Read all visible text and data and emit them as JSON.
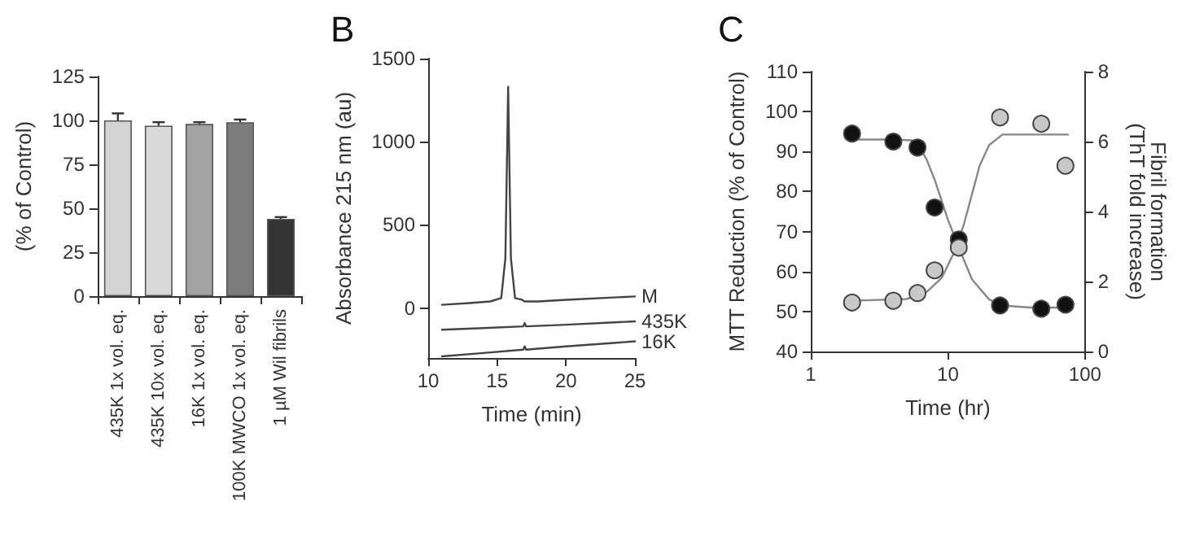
{
  "chart_data": [
    {
      "type": "bar",
      "ylabel": "(% of Control)",
      "categories": [
        "435K 1x vol. eq.",
        "435K 10x vol. eq.",
        "16K 1x vol. eq.",
        "100K MWCO 1x vol. eq.",
        "1 µM Wil fibrils"
      ],
      "values": [
        100,
        97,
        98,
        99,
        44
      ],
      "errors": [
        4,
        2,
        1,
        1.5,
        1
      ],
      "colors": [
        "#d4d4d4",
        "#d9d9d9",
        "#a3a3a3",
        "#7b7b7b",
        "#333333"
      ],
      "ylim": [
        0,
        125
      ],
      "yticks": [
        0,
        25,
        50,
        75,
        100,
        125
      ],
      "grid": false
    },
    {
      "type": "line",
      "title": "B",
      "xlabel": "Time (min)",
      "ylabel": "Absorbance 215 nm (au)",
      "xlim": [
        10,
        25
      ],
      "xticks": [
        10,
        15,
        20,
        25
      ],
      "ylim": [
        -300,
        1500
      ],
      "yticks": [
        0,
        500,
        1000,
        1500
      ],
      "grid": false,
      "marker": "none",
      "line_style": "solid",
      "series": [
        {
          "name": "M",
          "color": "#444444",
          "x": [
            11,
            13,
            14.5,
            15.3,
            15.6,
            15.8,
            16.0,
            16.3,
            16.8,
            17,
            18,
            20,
            25
          ],
          "values": [
            20,
            30,
            40,
            60,
            300,
            1330,
            300,
            60,
            50,
            40,
            40,
            50,
            70
          ]
        },
        {
          "name": "435K",
          "color": "#444444",
          "x": [
            11,
            14,
            16.9,
            17,
            17.1,
            20,
            25
          ],
          "values": [
            -130,
            -120,
            -110,
            -90,
            -110,
            -100,
            -80
          ]
        },
        {
          "name": "16K",
          "color": "#444444",
          "x": [
            11,
            14,
            16.9,
            17,
            17.1,
            20,
            25
          ],
          "values": [
            -290,
            -270,
            -250,
            -230,
            -250,
            -230,
            -200
          ]
        }
      ]
    },
    {
      "type": "scatter",
      "title": "C",
      "xlabel": "Time (hr)",
      "ylabel": "MTT Reduction (% of Control)",
      "y2label": "Fibril formation\n(ThT fold increase)",
      "log": "x",
      "xlim": [
        1,
        100
      ],
      "xticks": [
        1,
        10,
        100
      ],
      "ylim": [
        40,
        110
      ],
      "yticks": [
        40,
        50,
        60,
        70,
        80,
        90,
        100,
        110
      ],
      "y2lim": [
        0,
        8
      ],
      "y2ticks": [
        0,
        2,
        4,
        6,
        8
      ],
      "grid": false,
      "marker": "circle",
      "series": [
        {
          "type": "line",
          "marker": "none",
          "color": "#888888",
          "x": [
            2,
            4,
            5.5,
            6,
            7,
            8,
            10,
            12,
            15,
            20,
            25,
            40,
            75
          ],
          "values": [
            93,
            93,
            92.8,
            92,
            88,
            83,
            73,
            66,
            58,
            53,
            51.5,
            51,
            51
          ]
        },
        {
          "type": "line",
          "marker": "none",
          "axis": "y2",
          "color": "#888888",
          "x": [
            2,
            5,
            7,
            9,
            11,
            13,
            15,
            17,
            20,
            25,
            75
          ],
          "values": [
            1.45,
            1.5,
            1.7,
            2.1,
            2.8,
            3.6,
            4.5,
            5.3,
            5.9,
            6.2,
            6.2
          ]
        },
        {
          "color": "#111111",
          "x": [
            2,
            4,
            6,
            8,
            12,
            24,
            48,
            72
          ],
          "values": [
            94.5,
            92.5,
            91,
            76,
            68,
            51.5,
            50.7,
            51.7
          ]
        },
        {
          "color": "#c8c8c8",
          "axis": "y2",
          "x": [
            2,
            4,
            6,
            8,
            12,
            24,
            48,
            72
          ],
          "values": [
            1.4,
            1.45,
            1.67,
            2.32,
            2.97,
            6.69,
            6.51,
            5.31
          ]
        }
      ]
    }
  ]
}
